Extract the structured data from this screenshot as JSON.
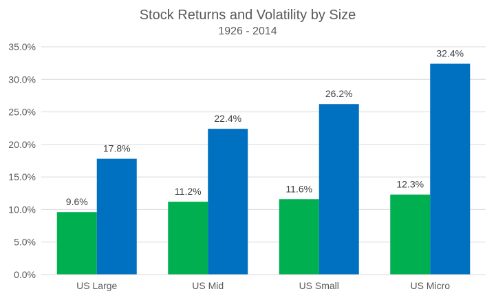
{
  "chart_data": {
    "type": "bar",
    "title": "Stock Returns and Volatility by Size",
    "subtitle": "1926 - 2014",
    "categories": [
      "US Large",
      "US Mid",
      "US Small",
      "US Micro"
    ],
    "series": [
      {
        "values": [
          9.6,
          11.2,
          11.6,
          12.3
        ],
        "labels": [
          "9.6%",
          "11.2%",
          "11.6%",
          "12.3%"
        ],
        "color": "#00B050"
      },
      {
        "values": [
          17.8,
          22.4,
          26.2,
          32.4
        ],
        "labels": [
          "17.8%",
          "22.4%",
          "26.2%",
          "32.4%"
        ],
        "color": "#0070C0"
      }
    ],
    "ylim": [
      0,
      35
    ],
    "yticks": [
      0,
      5,
      10,
      15,
      20,
      25,
      30,
      35
    ],
    "ytick_labels": [
      "0.0%",
      "5.0%",
      "10.0%",
      "15.0%",
      "20.0%",
      "25.0%",
      "30.0%",
      "35.0%"
    ],
    "grid": true,
    "legend": "none",
    "xlabel": "",
    "ylabel": ""
  }
}
